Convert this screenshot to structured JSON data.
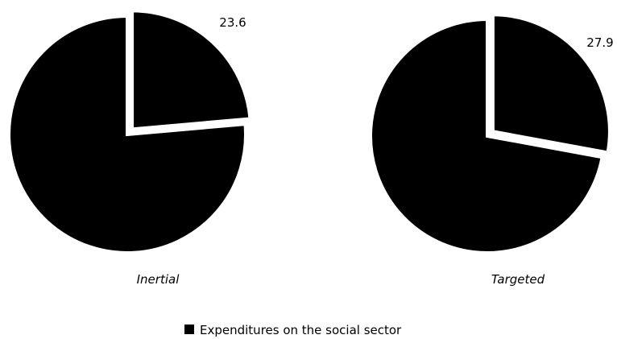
{
  "chart_data": [
    {
      "type": "pie",
      "caption": "Inertial",
      "slices": [
        {
          "name": "Expenditures on the social sector",
          "value": 23.6,
          "label": "23.6",
          "exploded": true,
          "color": "#000000"
        },
        {
          "name": "",
          "value": 76.4,
          "label": "",
          "exploded": false,
          "color": "#000000"
        }
      ]
    },
    {
      "type": "pie",
      "caption": "Targeted",
      "slices": [
        {
          "name": "Expenditures on the social sector",
          "value": 27.9,
          "label": "27.9",
          "exploded": true,
          "color": "#000000"
        },
        {
          "name": "",
          "value": 72.1,
          "label": "",
          "exploded": false,
          "color": "#000000"
        }
      ]
    }
  ],
  "legend": {
    "position": "bottom",
    "entries": [
      {
        "label": "Expenditures on the social sector",
        "color": "#000000"
      }
    ]
  },
  "colors": {
    "slice": "#000000",
    "slice_border": "#ffffff",
    "background": "#ffffff"
  }
}
